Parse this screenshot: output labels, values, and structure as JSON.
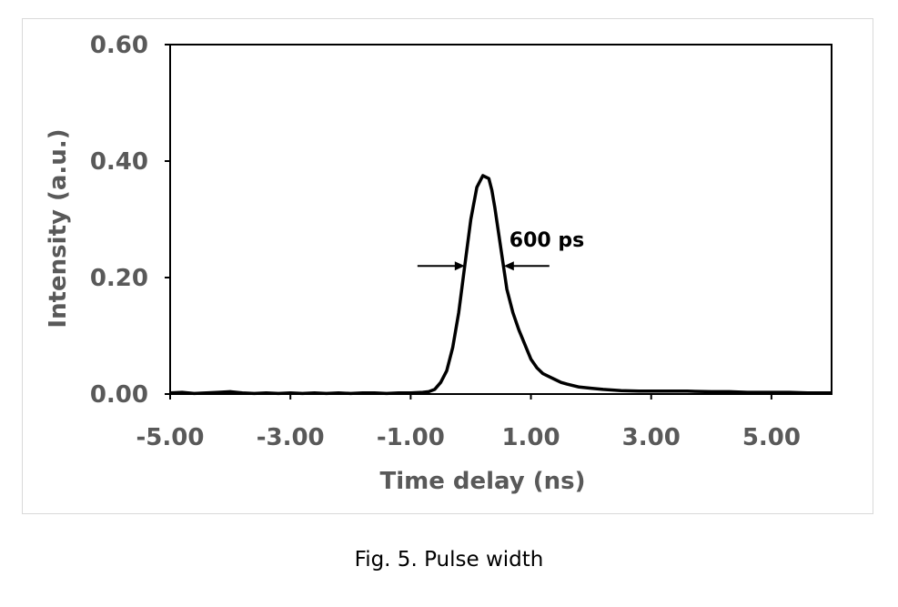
{
  "caption": "Fig. 5. Pulse width",
  "colors": {
    "axis_text": "#595959",
    "line": "#000000",
    "frame_border": "#d9d9d9"
  },
  "chart_data": {
    "type": "line",
    "title": "",
    "xlabel": "Time delay (ns)",
    "ylabel": "Intensity (a.u.)",
    "xlim": [
      -5.0,
      6.0
    ],
    "ylim": [
      0.0,
      0.6
    ],
    "xticks": [
      -5.0,
      -3.0,
      -1.0,
      1.0,
      3.0,
      5.0
    ],
    "xtick_labels": [
      "-5.00",
      "-3.00",
      "-1.00",
      "1.00",
      "3.00",
      "5.00"
    ],
    "yticks": [
      0.0,
      0.2,
      0.4,
      0.6
    ],
    "ytick_labels": [
      "0.00",
      "0.20",
      "0.40",
      "0.60"
    ],
    "grid": false,
    "legend": "none",
    "annotation": {
      "text": "600 ps",
      "x_left": -0.1,
      "x_right": 0.55,
      "y": 0.22
    },
    "series": [
      {
        "x": [
          -5.0,
          -4.8,
          -4.6,
          -4.4,
          -4.2,
          -4.0,
          -3.8,
          -3.6,
          -3.4,
          -3.2,
          -3.0,
          -2.8,
          -2.6,
          -2.4,
          -2.2,
          -2.0,
          -1.8,
          -1.6,
          -1.4,
          -1.2,
          -1.0,
          -0.8,
          -0.7,
          -0.6,
          -0.5,
          -0.4,
          -0.3,
          -0.2,
          -0.1,
          0.0,
          0.1,
          0.2,
          0.3,
          0.35,
          0.4,
          0.5,
          0.6,
          0.7,
          0.8,
          0.9,
          1.0,
          1.1,
          1.2,
          1.3,
          1.4,
          1.5,
          1.6,
          1.8,
          2.0,
          2.2,
          2.5,
          2.8,
          3.0,
          3.3,
          3.6,
          4.0,
          4.3,
          4.6,
          5.0,
          5.3,
          5.6,
          6.0
        ],
        "values": [
          0.002,
          0.003,
          0.001,
          0.002,
          0.003,
          0.004,
          0.002,
          0.001,
          0.002,
          0.001,
          0.002,
          0.001,
          0.002,
          0.001,
          0.002,
          0.001,
          0.002,
          0.002,
          0.001,
          0.002,
          0.002,
          0.003,
          0.004,
          0.008,
          0.02,
          0.04,
          0.08,
          0.14,
          0.22,
          0.3,
          0.355,
          0.375,
          0.37,
          0.35,
          0.32,
          0.25,
          0.18,
          0.14,
          0.11,
          0.085,
          0.06,
          0.045,
          0.035,
          0.03,
          0.025,
          0.02,
          0.017,
          0.012,
          0.01,
          0.008,
          0.006,
          0.005,
          0.005,
          0.005,
          0.005,
          0.004,
          0.004,
          0.003,
          0.003,
          0.003,
          0.002,
          0.002
        ]
      }
    ]
  }
}
